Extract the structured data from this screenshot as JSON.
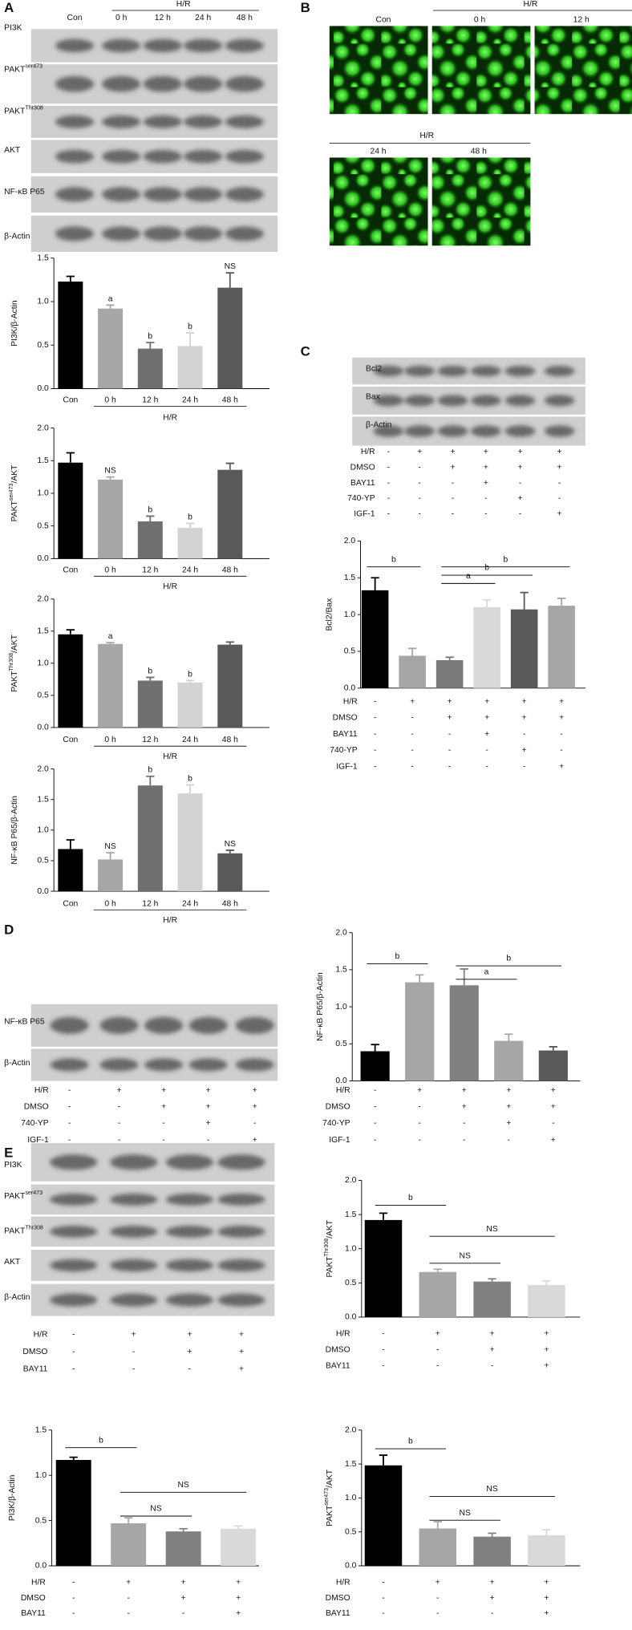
{
  "panel_labels": [
    "A",
    "B",
    "C",
    "D",
    "E"
  ],
  "blots": [
    {
      "lanes": [
        "Con",
        "0 h",
        "12 h",
        "24 h",
        "48 h"
      ],
      "group": "H/R",
      "rows": [
        "PI3K",
        {
          "text": "PAKT",
          "sup": "ser473"
        },
        {
          "text": "PAKT",
          "sup": "Thr308"
        },
        "AKT",
        "NF-κB P65",
        "β-Actin"
      ]
    },
    {
      "rows": [
        "Bcl2",
        "Bax",
        "β-Actin"
      ]
    },
    {
      "rows": [
        "NF-κB P65",
        "β-Actin"
      ]
    },
    {
      "rows": [
        "PI3K",
        {
          "text": "PAKT",
          "sup": "ser473"
        },
        {
          "text": "PAKT",
          "sup": "Thr308"
        },
        "AKT",
        "β-Actin"
      ]
    }
  ],
  "images": {
    "top_group": "H/R",
    "top_lanes": [
      "Con",
      "0 h",
      "12 h"
    ],
    "bottom_group": "H/R",
    "bottom_lanes": [
      "24 h",
      "48 h"
    ]
  },
  "chart_data": [
    {
      "type": "bar",
      "ylabel": "PI3K/β-Actin",
      "categories": [
        "Con",
        "0 h",
        "12 h",
        "24 h",
        "48 h"
      ],
      "values": [
        1.23,
        0.92,
        0.46,
        0.49,
        1.16
      ],
      "errors": [
        0.06,
        0.04,
        0.07,
        0.15,
        0.17
      ],
      "colors": [
        "#000000",
        "#a6a6a6",
        "#707070",
        "#d3d3d3",
        "#595959"
      ],
      "annotations": [
        null,
        "a",
        "b",
        "b",
        "NS"
      ],
      "group": {
        "label": "H/R",
        "from": 1,
        "to": 4
      },
      "ylim": [
        0,
        1.5
      ],
      "yticks": [
        {
          "value": 0,
          "label": "0.0"
        },
        0.5,
        {
          "value": 1,
          "label": "1.0"
        },
        1.5
      ]
    },
    {
      "type": "bar",
      "ylabel": {
        "text": "PAKT",
        "sup": "ser473",
        "tail": "/AKT"
      },
      "categories": [
        "Con",
        "0 h",
        "12 h",
        "24 h",
        "48 h"
      ],
      "values": [
        1.47,
        1.21,
        0.57,
        0.47,
        1.36
      ],
      "errors": [
        0.15,
        0.04,
        0.08,
        0.07,
        0.1
      ],
      "colors": [
        "#000000",
        "#a6a6a6",
        "#707070",
        "#d3d3d3",
        "#595959"
      ],
      "annotations": [
        null,
        "NS",
        "b",
        "b",
        null
      ],
      "group": {
        "label": "H/R",
        "from": 1,
        "to": 4
      },
      "ylim": [
        0,
        2
      ],
      "yticks": [
        {
          "value": 0,
          "label": "0.0"
        },
        0.5,
        {
          "value": 1,
          "label": "1.0"
        },
        1.5,
        {
          "value": 2,
          "label": "2.0"
        }
      ]
    },
    {
      "type": "bar",
      "ylabel": {
        "text": "PAKT",
        "sup": "Thr308",
        "tail": "/AKT"
      },
      "categories": [
        "Con",
        "0 h",
        "12 h",
        "24 h",
        "48 h"
      ],
      "values": [
        1.45,
        1.3,
        0.73,
        0.7,
        1.29
      ],
      "errors": [
        0.07,
        0.02,
        0.05,
        0.03,
        0.04
      ],
      "colors": [
        "#000000",
        "#a6a6a6",
        "#707070",
        "#d3d3d3",
        "#595959"
      ],
      "annotations": [
        null,
        "a",
        "b",
        "b",
        null
      ],
      "group": {
        "label": "H/R",
        "from": 1,
        "to": 4
      },
      "ylim": [
        0,
        2
      ],
      "yticks": [
        {
          "value": 0,
          "label": "0.0"
        },
        0.5,
        {
          "value": 1,
          "label": "1.0"
        },
        1.5,
        {
          "value": 2,
          "label": "2.0"
        }
      ]
    },
    {
      "type": "bar",
      "ylabel": "NF-κB P65/β-Actin",
      "categories": [
        "Con",
        "0 h",
        "12 h",
        "24 h",
        "48 h"
      ],
      "values": [
        0.69,
        0.52,
        1.73,
        1.6,
        0.62
      ],
      "errors": [
        0.15,
        0.11,
        0.15,
        0.14,
        0.05
      ],
      "colors": [
        "#000000",
        "#a6a6a6",
        "#707070",
        "#d3d3d3",
        "#595959"
      ],
      "annotations": [
        null,
        "NS",
        "b",
        "b",
        "NS"
      ],
      "group": {
        "label": "H/R",
        "from": 1,
        "to": 4
      },
      "ylim": [
        0,
        2
      ],
      "yticks": [
        {
          "value": 0,
          "label": "0.0"
        },
        0.5,
        {
          "value": 1,
          "label": "1.0"
        },
        1.5,
        {
          "value": 2,
          "label": "2.0"
        }
      ]
    },
    {
      "type": "bar",
      "ylabel": "Bcl2/Bax",
      "values": [
        1.33,
        0.44,
        0.38,
        1.1,
        1.07,
        1.12
      ],
      "errors": [
        0.17,
        0.1,
        0.04,
        0.1,
        0.23,
        0.1
      ],
      "colors": [
        "#000000",
        "#a6a6a6",
        "#7a7a7a",
        "#d9d9d9",
        "#595959",
        "#a6a6a6"
      ],
      "brackets": [
        {
          "from": 0,
          "to": 1,
          "label": "b"
        },
        {
          "from": 2,
          "to": 3,
          "label": "a"
        },
        {
          "from": 2,
          "to": 4,
          "label": "b"
        },
        {
          "from": 2,
          "to": 5,
          "label": "b"
        }
      ],
      "conditions": [
        {
          "name": "H/R",
          "marks": [
            "-",
            "+",
            "+",
            "+",
            "+",
            "+"
          ]
        },
        {
          "name": "DMSO",
          "marks": [
            "-",
            "-",
            "+",
            "+",
            "+",
            "+"
          ]
        },
        {
          "name": "BAY11",
          "marks": [
            "-",
            "-",
            "-",
            "+",
            "-",
            "-"
          ]
        },
        {
          "name": "740-YP",
          "marks": [
            "-",
            "-",
            "-",
            "-",
            "+",
            "-"
          ]
        },
        {
          "name": "IGF-1",
          "marks": [
            "-",
            "-",
            "-",
            "-",
            "-",
            "+"
          ]
        }
      ],
      "ylim": [
        0,
        2
      ],
      "yticks": [
        {
          "value": 0,
          "label": "0.0"
        },
        0.5,
        {
          "value": 1,
          "label": "1.0"
        },
        1.5,
        {
          "value": 2,
          "label": "2.0"
        }
      ]
    },
    {
      "type": "bar",
      "ylabel": "NF-κB P65/β-Actin",
      "values": [
        0.4,
        1.33,
        1.29,
        0.54,
        0.41
      ],
      "errors": [
        0.09,
        0.1,
        0.22,
        0.09,
        0.05
      ],
      "colors": [
        "#000000",
        "#a6a6a6",
        "#808080",
        "#a6a6a6",
        "#595959"
      ],
      "brackets": [
        {
          "from": 0,
          "to": 1,
          "label": "b"
        },
        {
          "from": 2,
          "to": 3,
          "label": "a"
        },
        {
          "from": 2,
          "to": 4,
          "label": "b"
        }
      ],
      "conditions": [
        {
          "name": "H/R",
          "marks": [
            "-",
            "+",
            "+",
            "+",
            "+"
          ]
        },
        {
          "name": "DMSO",
          "marks": [
            "-",
            "-",
            "+",
            "+",
            "+"
          ]
        },
        {
          "name": "740-YP",
          "marks": [
            "-",
            "-",
            "-",
            "+",
            "-"
          ]
        },
        {
          "name": "IGF-1",
          "marks": [
            "-",
            "-",
            "-",
            "-",
            "+"
          ]
        }
      ],
      "ylim": [
        0,
        2
      ],
      "yticks": [
        {
          "value": 0,
          "label": "0.0"
        },
        0.5,
        {
          "value": 1,
          "label": "1.0"
        },
        1.5,
        {
          "value": 2,
          "label": "2.0"
        }
      ]
    },
    {
      "type": "bar",
      "ylabel": {
        "text": "PAKT",
        "sup": "Thr308",
        "tail": "/AKT"
      },
      "values": [
        1.42,
        0.66,
        0.52,
        0.47
      ],
      "errors": [
        0.1,
        0.04,
        0.04,
        0.06
      ],
      "colors": [
        "#000000",
        "#a6a6a6",
        "#808080",
        "#d9d9d9"
      ],
      "brackets": [
        {
          "from": 0,
          "to": 1,
          "label": "b"
        },
        {
          "from": 1,
          "to": 3,
          "label": "NS"
        },
        {
          "from": 1,
          "to": 2,
          "label": "NS"
        }
      ],
      "conditions": [
        {
          "name": "H/R",
          "marks": [
            "-",
            "+",
            "+",
            "+"
          ]
        },
        {
          "name": "DMSO",
          "marks": [
            "-",
            "-",
            "+",
            "+"
          ]
        },
        {
          "name": "BAY11",
          "marks": [
            "-",
            "-",
            "-",
            "+"
          ]
        }
      ],
      "ylim": [
        0,
        2
      ],
      "yticks": [
        {
          "value": 0,
          "label": "0.0"
        },
        0.5,
        {
          "value": 1,
          "label": "1.0"
        },
        1.5,
        {
          "value": 2,
          "label": "2.0"
        }
      ]
    },
    {
      "type": "bar",
      "ylabel": "PI3K/β-Actin",
      "values": [
        1.17,
        0.47,
        0.38,
        0.41
      ],
      "errors": [
        0.03,
        0.06,
        0.03,
        0.03
      ],
      "colors": [
        "#000000",
        "#a6a6a6",
        "#808080",
        "#d9d9d9"
      ],
      "brackets": [
        {
          "from": 0,
          "to": 1,
          "label": "b"
        },
        {
          "from": 1,
          "to": 3,
          "label": "NS"
        },
        {
          "from": 1,
          "to": 2,
          "label": "NS"
        }
      ],
      "conditions": [
        {
          "name": "H/R",
          "marks": [
            "-",
            "+",
            "+",
            "+"
          ]
        },
        {
          "name": "DMSO",
          "marks": [
            "-",
            "-",
            "+",
            "+"
          ]
        },
        {
          "name": "BAY11",
          "marks": [
            "-",
            "-",
            "-",
            "+"
          ]
        }
      ],
      "ylim": [
        0,
        1.5
      ],
      "yticks": [
        {
          "value": 0,
          "label": "0.0"
        },
        0.5,
        {
          "value": 1,
          "label": "1.0"
        },
        1.5
      ]
    },
    {
      "type": "bar",
      "ylabel": {
        "text": "PAKT",
        "sup": "ser473",
        "tail": "/AKT"
      },
      "values": [
        1.48,
        0.55,
        0.43,
        0.45
      ],
      "errors": [
        0.15,
        0.1,
        0.05,
        0.08
      ],
      "colors": [
        "#000000",
        "#a6a6a6",
        "#808080",
        "#d9d9d9"
      ],
      "brackets": [
        {
          "from": 0,
          "to": 1,
          "label": "b"
        },
        {
          "from": 1,
          "to": 3,
          "label": "NS"
        },
        {
          "from": 1,
          "to": 2,
          "label": "NS"
        }
      ],
      "conditions": [
        {
          "name": "H/R",
          "marks": [
            "-",
            "+",
            "+",
            "+"
          ]
        },
        {
          "name": "DMSO",
          "marks": [
            "-",
            "-",
            "+",
            "+"
          ]
        },
        {
          "name": "BAY11",
          "marks": [
            "-",
            "-",
            "-",
            "+"
          ]
        }
      ],
      "ylim": [
        0,
        2
      ],
      "yticks": [
        {
          "value": 0,
          "label": "0.0"
        },
        0.5,
        {
          "value": 1,
          "label": "1.0"
        },
        1.5,
        {
          "value": 2,
          "label": "2.0"
        }
      ]
    }
  ]
}
